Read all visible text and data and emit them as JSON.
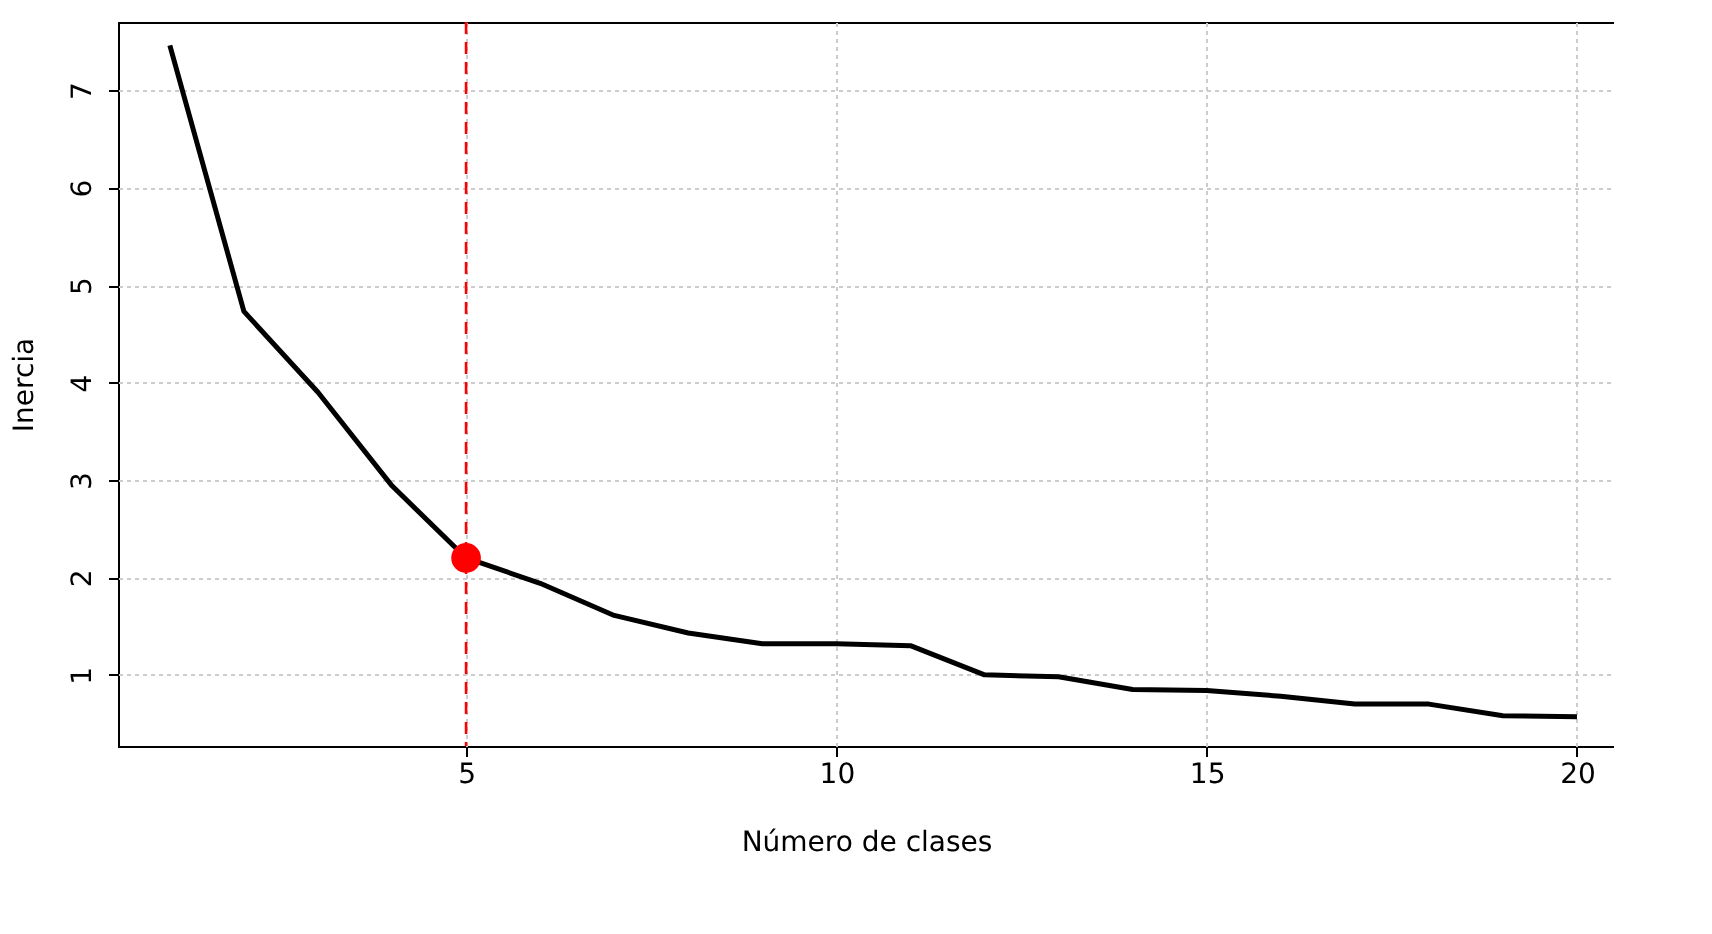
{
  "chart_data": {
    "type": "line",
    "xlabel": "Número de clases",
    "ylabel": "Inercia",
    "xlim": [
      0.3,
      20.5
    ],
    "ylim": [
      0.27,
      7.7
    ],
    "xticks": [
      5,
      10,
      15,
      20
    ],
    "yticks": [
      1,
      2,
      3,
      4,
      5,
      6,
      7
    ],
    "grid": true,
    "series": [
      {
        "color": "#000000",
        "x": [
          1,
          2,
          3,
          4,
          5,
          6,
          7,
          8,
          9,
          10,
          11,
          12,
          13,
          14,
          15,
          16,
          17,
          18,
          19,
          20
        ],
        "values": [
          7.46,
          4.73,
          3.9,
          2.94,
          2.2,
          1.94,
          1.61,
          1.43,
          1.32,
          1.32,
          1.3,
          1.0,
          0.98,
          0.85,
          0.84,
          0.78,
          0.7,
          0.7,
          0.58,
          0.57
        ],
        "marker": "none",
        "line_style": "solid"
      },
      {
        "type": "scatter",
        "color": "#ff0000",
        "x": [
          5
        ],
        "values": [
          2.2
        ],
        "marker": "circle"
      }
    ],
    "ref_lines": [
      {
        "axis": "x",
        "value": 5,
        "color": "#ff0000",
        "line_style": "dashed"
      }
    ]
  }
}
